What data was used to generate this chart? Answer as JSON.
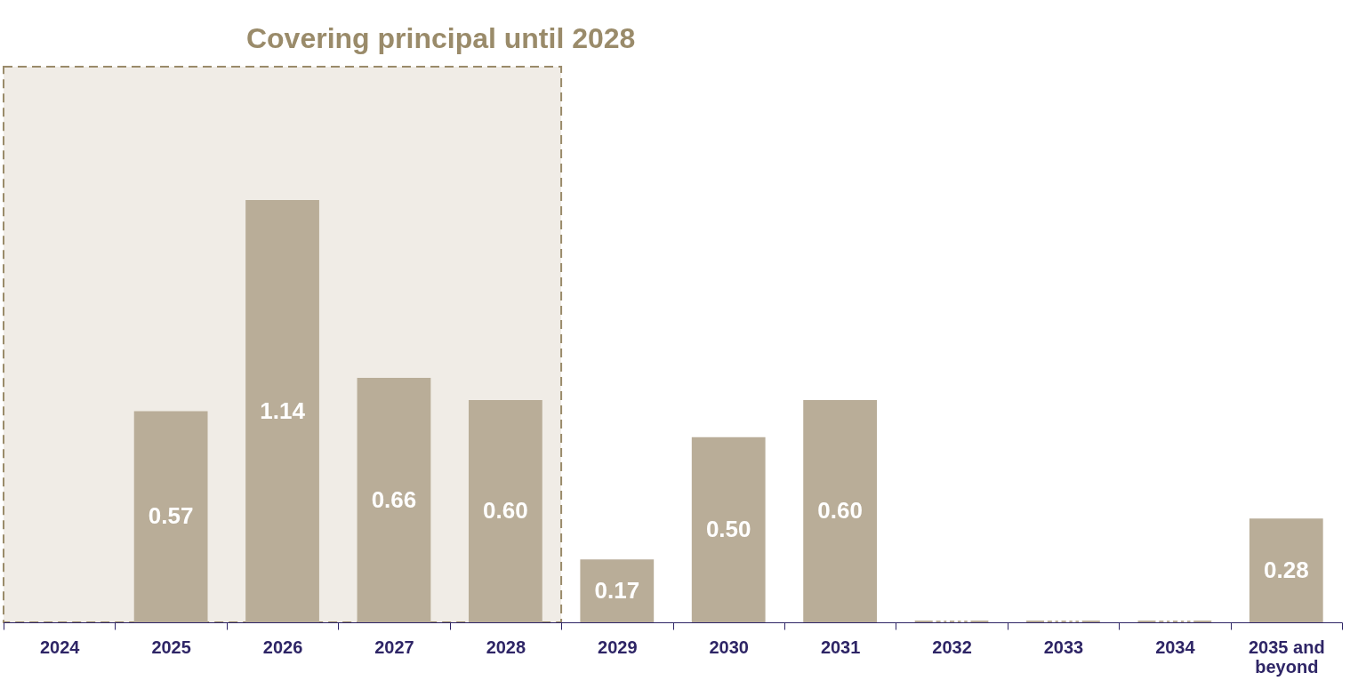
{
  "chart_data": {
    "type": "bar",
    "categories": [
      "2024",
      "2025",
      "2026",
      "2027",
      "2028",
      "2029",
      "2030",
      "2031",
      "2032",
      "2033",
      "2034",
      "2035 and beyond"
    ],
    "values": [
      null,
      0.57,
      1.14,
      0.66,
      0.6,
      0.17,
      0.5,
      0.6,
      0.005,
      0.005,
      0.005,
      0.28
    ],
    "value_labels": [
      null,
      "0.57",
      "1.14",
      "0.66",
      "0.60",
      "0.17",
      "0.50",
      "0.60",
      null,
      null,
      null,
      "0.28"
    ],
    "color": "#b9ad98",
    "ylim": [
      0,
      1.5
    ],
    "tick_labels": "x",
    "grid": false,
    "bands": [
      {
        "axis": "x",
        "from": "2024",
        "to": "2028",
        "label": "Covering principal until 2028",
        "color": "#f0ece6"
      }
    ]
  }
}
